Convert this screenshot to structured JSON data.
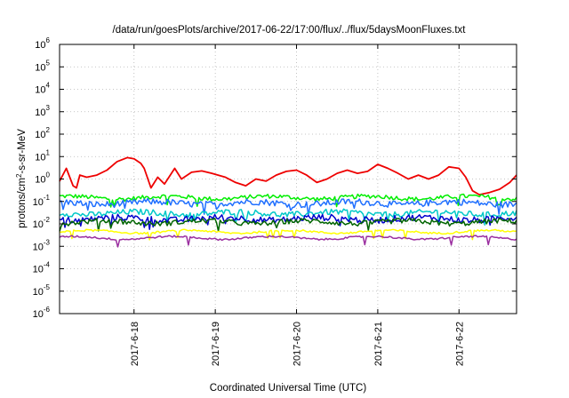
{
  "chart_data": {
    "type": "line",
    "title": "/data/run/goesPlots/archive/2017-06-22/17:00/flux/../flux/5daysMoonFluxes.txt",
    "xlabel": "Coordinated Universal Time (UTC)",
    "ylabel": {
      "pre": "protons/cm",
      "sup": "2",
      "post": "-s-sr-MeV"
    },
    "yscale": "log",
    "ylim": [
      1e-06,
      1000000.0
    ],
    "xlim": [
      "2017-06-17 02:00",
      "2017-06-22 17:00"
    ],
    "grid": true,
    "legend": "none",
    "x_ticks": [
      "2017-6-18",
      "2017-6-19",
      "2017-6-20",
      "2017-6-21",
      "2017-6-22"
    ],
    "y_ticks": [
      {
        "base": "10",
        "exp": "-6"
      },
      {
        "base": "10",
        "exp": "-5"
      },
      {
        "base": "10",
        "exp": "-4"
      },
      {
        "base": "10",
        "exp": "-3"
      },
      {
        "base": "10",
        "exp": "-2"
      },
      {
        "base": "10",
        "exp": "-1"
      },
      {
        "base": "10",
        "exp": "0"
      },
      {
        "base": "10",
        "exp": "1"
      },
      {
        "base": "10",
        "exp": "2"
      },
      {
        "base": "10",
        "exp": "3"
      },
      {
        "base": "10",
        "exp": "4"
      },
      {
        "base": "10",
        "exp": "5"
      },
      {
        "base": "10",
        "exp": "6"
      }
    ],
    "series": [
      {
        "color": "#ee0000",
        "x": [
          "2017-06-17 02:00",
          "2017-06-17 04:00",
          "2017-06-17 06:00",
          "2017-06-17 07:00",
          "2017-06-17 08:00",
          "2017-06-17 10:00",
          "2017-06-17 13:00",
          "2017-06-17 16:00",
          "2017-06-17 19:00",
          "2017-06-17 22:00",
          "2017-06-18 00:00",
          "2017-06-18 02:00",
          "2017-06-18 03:00",
          "2017-06-18 05:00",
          "2017-06-18 07:00",
          "2017-06-18 09:00",
          "2017-06-18 12:00",
          "2017-06-18 14:00",
          "2017-06-18 17:00",
          "2017-06-18 20:00",
          "2017-06-18 23:00",
          "2017-06-19 03:00",
          "2017-06-19 06:00",
          "2017-06-19 09:00",
          "2017-06-19 12:00",
          "2017-06-19 15:00",
          "2017-06-19 18:00",
          "2017-06-19 21:00",
          "2017-06-20 00:00",
          "2017-06-20 03:00",
          "2017-06-20 06:00",
          "2017-06-20 09:00",
          "2017-06-20 12:00",
          "2017-06-20 15:00",
          "2017-06-20 18:00",
          "2017-06-20 21:00",
          "2017-06-21 00:00",
          "2017-06-21 03:00",
          "2017-06-21 06:00",
          "2017-06-21 09:00",
          "2017-06-21 12:00",
          "2017-06-21 15:00",
          "2017-06-21 18:00",
          "2017-06-21 21:00",
          "2017-06-22 00:00",
          "2017-06-22 02:00",
          "2017-06-22 04:00",
          "2017-06-22 06:00",
          "2017-06-22 09:00",
          "2017-06-22 12:00",
          "2017-06-22 15:00",
          "2017-06-22 17:00"
        ],
        "y": [
          0.8,
          3,
          0.5,
          0.4,
          1.5,
          1.2,
          1.5,
          2.5,
          6,
          9,
          8,
          5,
          3,
          0.4,
          1.2,
          0.6,
          3,
          1,
          2,
          2.3,
          1.8,
          1.2,
          0.7,
          0.5,
          1,
          0.8,
          1.5,
          2.2,
          2.5,
          1.5,
          0.7,
          1,
          1.8,
          2.5,
          1.8,
          2.2,
          4.5,
          3,
          1.8,
          1,
          1.5,
          1,
          1.5,
          3.5,
          3,
          1.2,
          0.3,
          0.2,
          0.25,
          0.35,
          0.7,
          1.5
        ]
      },
      {
        "color": "#00ee00",
        "level": 0.15,
        "amp": 1.25
      },
      {
        "color": "#1f6fff",
        "level": 0.085,
        "amp": 1.4
      },
      {
        "color": "#00c8c8",
        "level": 0.03,
        "amp": 1.35
      },
      {
        "color": "#0000cc",
        "level": 0.017,
        "amp": 1.4
      },
      {
        "color": "#006400",
        "level": 0.012,
        "amp": 1.3
      },
      {
        "color": "#ffff00",
        "level": 0.0045,
        "amp": 1.1
      },
      {
        "color": "#9b2fa0",
        "level": 0.0024,
        "amp": 1.1
      }
    ]
  }
}
